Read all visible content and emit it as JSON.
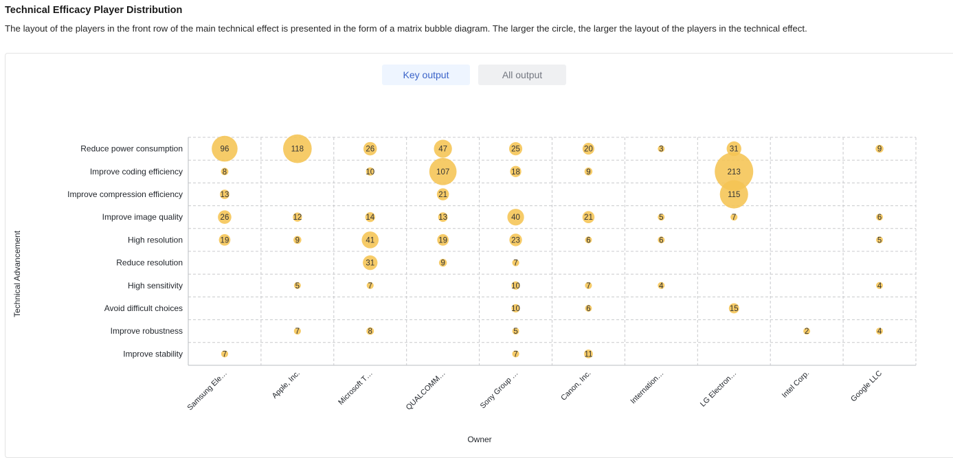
{
  "header": {
    "title": "Technical Efficacy Player Distribution",
    "description": "The layout of the players in the front row of the main technical effect is presented in the form of a matrix bubble diagram. The larger the circle, the larger the layout of the players in the technical effect."
  },
  "tabs": [
    {
      "label": "Key output",
      "active": true
    },
    {
      "label": "All output",
      "active": false
    }
  ],
  "colors": {
    "bubble": "#f5c453",
    "grid": "#c8c9cc",
    "active_tab_text": "#3a63c8"
  },
  "chart_data": {
    "type": "matrix-bubble",
    "xlabel": "Owner",
    "ylabel": "Technical Advancement",
    "x_categories": [
      "Samsung Ele…",
      "Apple, Inc.",
      "Microsoft T…",
      "QUALCOMM…",
      "Sony Group …",
      "Canon, Inc.",
      "Internation…",
      "LG Electron…",
      "Intel Corp.",
      "Google LLC"
    ],
    "y_categories": [
      "Reduce power consumption",
      "Improve coding efficiency",
      "Improve compression efficiency",
      "Improve image quality",
      "High resolution",
      "Reduce resolution",
      "High sensitivity",
      "Avoid difficult choices",
      "Improve robustness",
      "Improve stability"
    ],
    "values": [
      [
        96,
        118,
        26,
        47,
        25,
        20,
        3,
        31,
        null,
        9
      ],
      [
        8,
        null,
        10,
        107,
        18,
        9,
        null,
        213,
        null,
        null
      ],
      [
        13,
        null,
        null,
        21,
        null,
        null,
        null,
        115,
        null,
        null
      ],
      [
        26,
        12,
        14,
        13,
        40,
        21,
        5,
        7,
        null,
        6
      ],
      [
        19,
        9,
        41,
        19,
        23,
        6,
        6,
        null,
        null,
        5
      ],
      [
        null,
        null,
        31,
        9,
        7,
        null,
        null,
        null,
        null,
        null
      ],
      [
        null,
        5,
        7,
        null,
        10,
        7,
        4,
        null,
        null,
        4
      ],
      [
        null,
        null,
        null,
        null,
        10,
        6,
        null,
        15,
        null,
        null
      ],
      [
        null,
        7,
        8,
        null,
        5,
        null,
        null,
        null,
        2,
        4
      ],
      [
        7,
        null,
        null,
        null,
        7,
        11,
        null,
        null,
        null,
        null
      ]
    ],
    "grid": true
  }
}
